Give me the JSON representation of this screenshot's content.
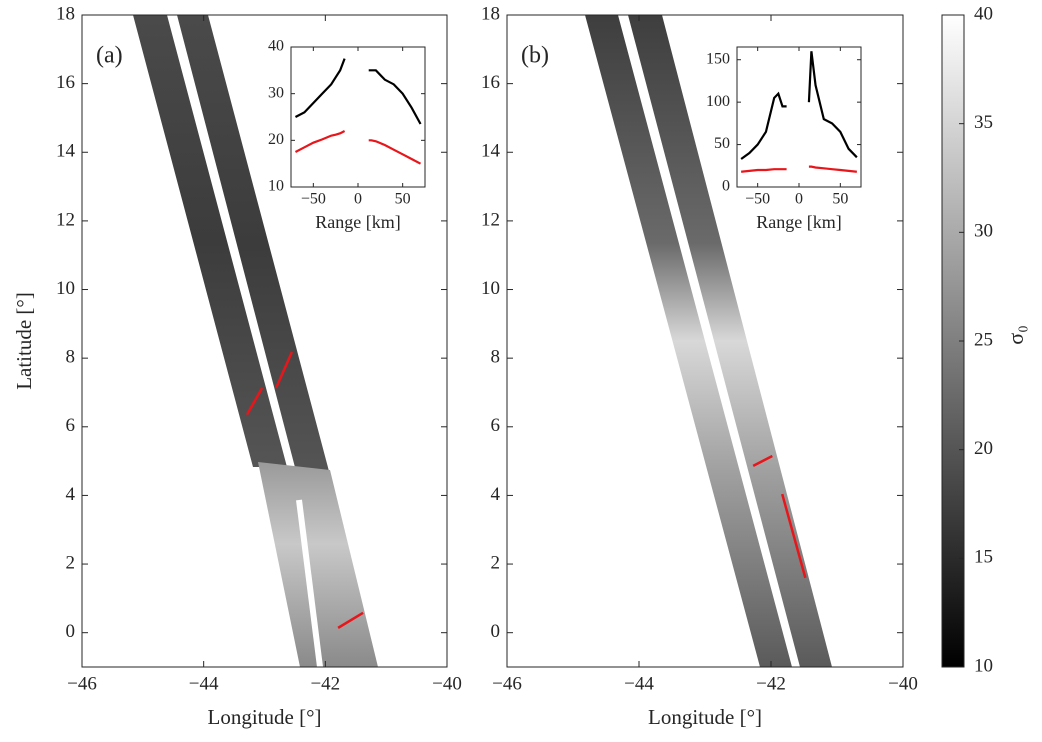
{
  "chart_data": [
    {
      "type": "map",
      "panel_label": "(a)",
      "xlabel": "Longitude [°]",
      "ylabel": "Latitude [°]",
      "xlim": [
        -46,
        -40
      ],
      "ylim": [
        -1,
        18
      ],
      "xticks": [
        {
          "value": -46,
          "label": "−46"
        },
        {
          "value": -44,
          "label": "−44"
        },
        {
          "value": -42,
          "label": "−42"
        },
        {
          "value": -40,
          "label": "−40"
        }
      ],
      "yticks": [
        0,
        2,
        4,
        6,
        8,
        10,
        12,
        14,
        16,
        18
      ],
      "tracks": {
        "color": "#e8161b",
        "segments": [
          {
            "x": [
              -43.29,
              -43.04
            ],
            "y": [
              6.35,
              7.13
            ]
          },
          {
            "x": [
              -42.81,
              -42.55
            ],
            "y": [
              7.13,
              8.18
            ]
          },
          {
            "x": [
              -41.79,
              -41.38
            ],
            "y": [
              0.14,
              0.58
            ]
          }
        ]
      }
    },
    {
      "type": "map",
      "panel_label": "(b)",
      "xlabel": "Longitude [°]",
      "xlim": [
        -46,
        -40
      ],
      "ylim": [
        -1,
        18
      ],
      "xticks": [
        {
          "value": -46,
          "label": "−46"
        },
        {
          "value": -44,
          "label": "−44"
        },
        {
          "value": -42,
          "label": "−42"
        },
        {
          "value": -40,
          "label": "−40"
        }
      ],
      "yticks": [
        0,
        2,
        4,
        6,
        8,
        10,
        12,
        14,
        16,
        18
      ],
      "tracks": {
        "color": "#e8161b",
        "segments": [
          {
            "x": [
              -42.27,
              -41.98
            ],
            "y": [
              4.86,
              5.15
            ]
          },
          {
            "x": [
              -41.83,
              -41.48
            ],
            "y": [
              4.04,
              1.6
            ]
          }
        ]
      }
    },
    {
      "type": "line",
      "xlabel": "Range [km]",
      "xlim": [
        -75,
        75
      ],
      "ylim": [
        10,
        40
      ],
      "xticks": [
        {
          "value": -50,
          "label": "−50"
        },
        0,
        50
      ],
      "yticks": [
        10,
        20,
        30,
        40
      ],
      "x": [
        -70,
        -60,
        -50,
        -40,
        -30,
        -25,
        -20,
        -15,
        0,
        12,
        15,
        20,
        30,
        40,
        50,
        60,
        70
      ],
      "series": [
        {
          "color": "#000000",
          "values": [
            25,
            26,
            28,
            30,
            32,
            33.5,
            35,
            37.5,
            null,
            35,
            35,
            35,
            33,
            32,
            30,
            27,
            23.5
          ]
        },
        {
          "color": "#e8161b",
          "values": [
            17.5,
            18.5,
            19.5,
            20.2,
            21,
            21.2,
            21.5,
            22,
            null,
            20,
            20,
            19.8,
            19,
            18,
            17,
            16,
            15
          ]
        }
      ]
    },
    {
      "type": "line",
      "xlabel": "Range [km]",
      "xlim": [
        -75,
        75
      ],
      "ylim": [
        0,
        165
      ],
      "xticks": [
        {
          "value": -50,
          "label": "−50"
        },
        0,
        50
      ],
      "yticks": [
        0,
        50,
        100,
        150
      ],
      "x": [
        -70,
        -60,
        -50,
        -40,
        -30,
        -25,
        -20,
        -15,
        0,
        12,
        15,
        20,
        30,
        40,
        50,
        60,
        70
      ],
      "series": [
        {
          "color": "#000000",
          "values": [
            33,
            40,
            50,
            65,
            105,
            110,
            95,
            95,
            null,
            100,
            160,
            120,
            80,
            75,
            65,
            45,
            35
          ]
        },
        {
          "color": "#e8161b",
          "values": [
            18,
            19,
            20,
            20,
            21,
            21,
            21,
            21,
            null,
            24,
            24,
            23,
            22,
            21,
            20,
            19,
            18
          ]
        }
      ]
    },
    {
      "type": "colorbar",
      "label": "σ₀",
      "clim": [
        10,
        40
      ],
      "ticks": [
        10,
        15,
        20,
        25,
        30,
        35,
        40
      ]
    }
  ]
}
